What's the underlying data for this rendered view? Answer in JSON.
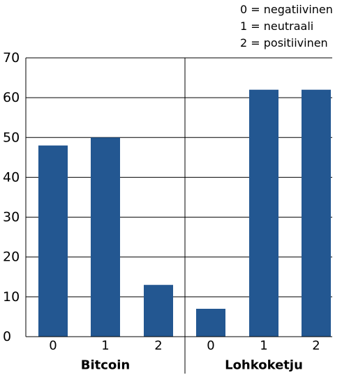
{
  "chart_data": {
    "type": "bar",
    "groups": [
      "Bitcoin",
      "Lohkoketju"
    ],
    "categories": [
      "0",
      "1",
      "2"
    ],
    "series": [
      {
        "group": "Bitcoin",
        "values": [
          48,
          50,
          13
        ]
      },
      {
        "group": "Lohkoketju",
        "values": [
          7,
          62,
          62
        ]
      }
    ],
    "ylim": [
      0,
      70
    ],
    "yticks": [
      0,
      10,
      20,
      30,
      40,
      50,
      60,
      70
    ],
    "grid": true,
    "legend": {
      "placement": "top-right",
      "entries": [
        "0 = negatiivinen",
        "1 = neutraali",
        "2 = positiivinen"
      ]
    },
    "colors": {
      "bar": "#235791",
      "axis": "#000000",
      "grid": "#000000"
    }
  }
}
